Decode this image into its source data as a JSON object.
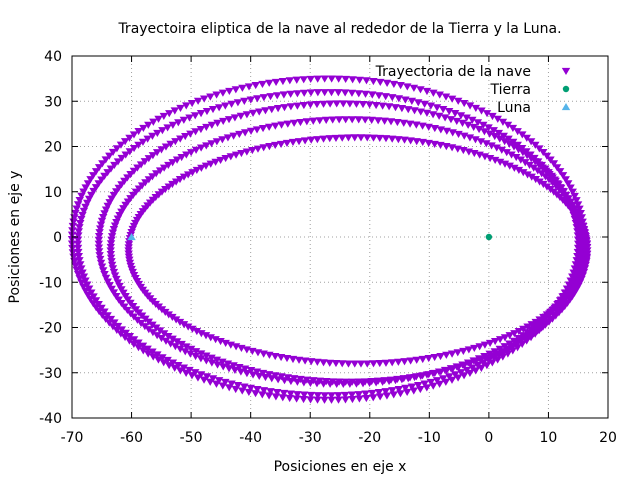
{
  "chart_data": {
    "type": "scatter",
    "title": "Trayectoira eliptica de la nave al rededor de la Tierra y la Luna.",
    "xlabel": "Posiciones en eje x",
    "ylabel": "Posiciones en eje y",
    "xlim": [
      -70,
      20
    ],
    "ylim": [
      -40,
      40
    ],
    "xticks": [
      -70,
      -60,
      -50,
      -40,
      -30,
      -20,
      -10,
      0,
      10,
      20
    ],
    "yticks": [
      -40,
      -30,
      -20,
      -10,
      0,
      10,
      20,
      30,
      40
    ],
    "grid": true,
    "legend_position": "top-right",
    "series": [
      {
        "name": "Trayectoria de la nave",
        "marker": "triangle-down",
        "color": "#9400d3",
        "orbits": [
          {
            "center_x": -27,
            "center_y": -0.5,
            "semi_axis_x": 43,
            "semi_axis_y": 35.5
          },
          {
            "center_x": -27,
            "center_y": -1.5,
            "semi_axis_x": 42,
            "semi_axis_y": 33.5
          },
          {
            "center_x": -25,
            "center_y": -1.5,
            "semi_axis_x": 40.5,
            "semi_axis_y": 31
          },
          {
            "center_x": -23.5,
            "center_y": -3,
            "semi_axis_x": 40,
            "semi_axis_y": 29
          },
          {
            "center_x": -22,
            "center_y": -3,
            "semi_axis_x": 38.5,
            "semi_axis_y": 25
          }
        ],
        "start_point": [
          -45,
          32.5
        ]
      },
      {
        "name": "Tierra",
        "marker": "filled-circle",
        "color": "#009e73",
        "points": [
          [
            0,
            0
          ]
        ]
      },
      {
        "name": "Luna",
        "marker": "triangle-up",
        "color": "#56b4e9",
        "points": [
          [
            -60,
            0
          ]
        ]
      }
    ]
  }
}
